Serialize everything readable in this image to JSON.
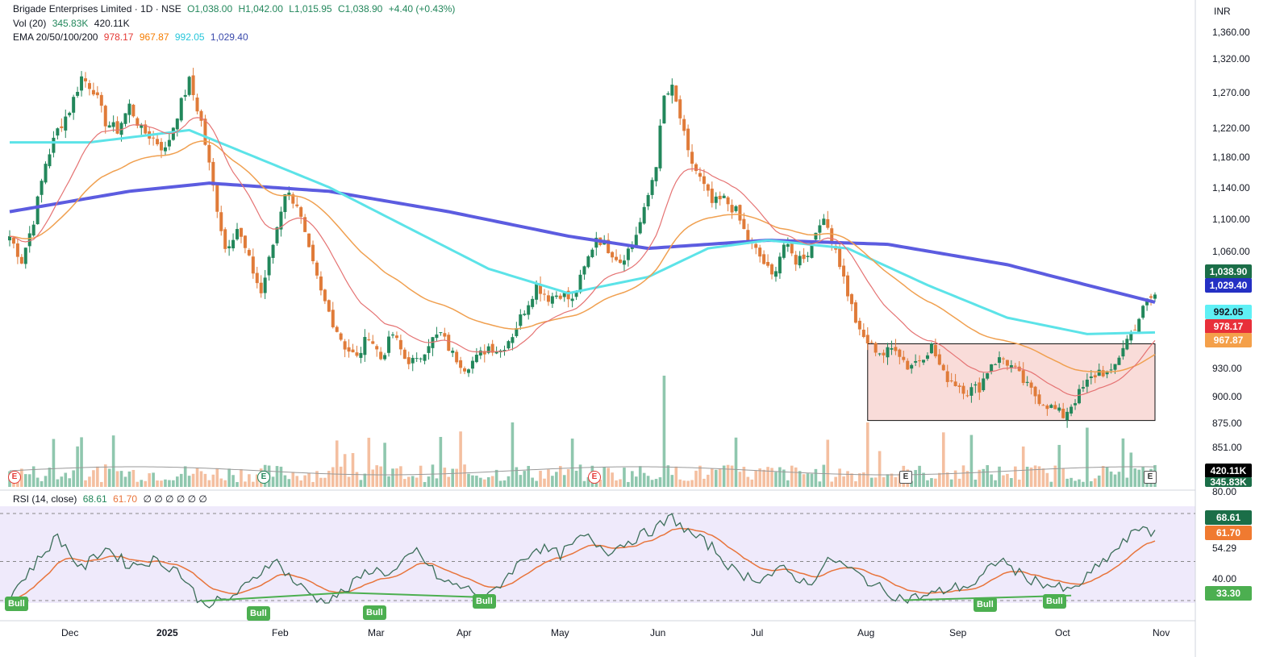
{
  "header": {
    "symbol": "Brigade Enterprises Limited · 1D · NSE",
    "ohlc_o": "O1,038.00",
    "ohlc_h": "H1,042.00",
    "ohlc_l": "L1,015.95",
    "ohlc_c": "C1,038.90",
    "change": "+4.40 (+0.43%)",
    "vol_label": "Vol (20)",
    "vol_a": "345.83K",
    "vol_b": "420.11K",
    "ema_label": "EMA 20/50/100/200",
    "ema20": "978.17",
    "ema50": "967.87",
    "ema100": "992.05",
    "ema200": "1,029.40",
    "rsi_label": "RSI (14, close)",
    "rsi_val": "68.61",
    "rsi_ma": "61.70",
    "rsi_rest": "∅ ∅ ∅ ∅ ∅ ∅",
    "currency": "INR"
  },
  "colors": {
    "up": "#22875b",
    "down": "#e07b39",
    "ema20": "#e57373",
    "ema50": "#f0a050",
    "ema100": "#5ce3e8",
    "ema200": "#5c5ce0",
    "rsi": "#3c6e5a",
    "rsi_ma": "#e8743b",
    "box_fill": "#f8d6d2",
    "rsi_bg": "#efeafb"
  },
  "price_axis": [
    "1,360.00",
    "1,320.00",
    "1,270.00",
    "1,220.00",
    "1,180.00",
    "1,140.00",
    "1,100.00",
    "1,060.00",
    "930.00",
    "900.00",
    "875.00",
    "851.00"
  ],
  "rsi_axis": [
    "80.00",
    "54.29",
    "40.00"
  ],
  "price_tags": {
    "last": "1,038.90",
    "ema200": "1,029.40",
    "ema100": "992.05",
    "ema20": "978.17",
    "ema50": "967.87",
    "vol_b": "420.11K",
    "vol_a": "345.83K"
  },
  "rsi_tags": {
    "rsi": "68.61",
    "ma": "61.70",
    "low": "33.30"
  },
  "x_axis": [
    "Dec",
    "2025",
    "Feb",
    "Mar",
    "Apr",
    "May",
    "Jun",
    "Jul",
    "Aug",
    "Sep",
    "Oct",
    "Nov"
  ],
  "signals": [
    "Bull",
    "Bull",
    "Bull",
    "Bull",
    "Bull",
    "Bull"
  ],
  "events": [
    "E",
    "E",
    "E",
    "E",
    "E"
  ],
  "chart_data": {
    "type": "candlestick",
    "title": "Brigade Enterprises Limited · 1D · NSE",
    "ylim": [
      840,
      1375
    ],
    "rsi_levels": [
      33.3,
      54.29,
      80
    ],
    "x_ticks": [
      "Dec",
      "2025",
      "Feb",
      "Mar",
      "Apr",
      "May",
      "Jun",
      "Jul",
      "Aug",
      "Sep",
      "Oct",
      "Nov"
    ],
    "price_anchors": [
      [
        0,
        1110
      ],
      [
        3,
        1080
      ],
      [
        6,
        1130
      ],
      [
        9,
        1200
      ],
      [
        12,
        1240
      ],
      [
        15,
        1265
      ],
      [
        18,
        1305
      ],
      [
        21,
        1290
      ],
      [
        24,
        1250
      ],
      [
        27,
        1240
      ],
      [
        30,
        1270
      ],
      [
        33,
        1240
      ],
      [
        36,
        1230
      ],
      [
        39,
        1215
      ],
      [
        42,
        1260
      ],
      [
        45,
        1300
      ],
      [
        48,
        1250
      ],
      [
        51,
        1170
      ],
      [
        54,
        1095
      ],
      [
        57,
        1120
      ],
      [
        60,
        1080
      ],
      [
        63,
        1040
      ],
      [
        66,
        1100
      ],
      [
        69,
        1165
      ],
      [
        72,
        1150
      ],
      [
        75,
        1090
      ],
      [
        78,
        1040
      ],
      [
        81,
        1005
      ],
      [
        84,
        975
      ],
      [
        87,
        960
      ],
      [
        90,
        990
      ],
      [
        93,
        960
      ],
      [
        96,
        990
      ],
      [
        99,
        960
      ],
      [
        102,
        955
      ],
      [
        105,
        980
      ],
      [
        108,
        990
      ],
      [
        111,
        965
      ],
      [
        114,
        950
      ],
      [
        117,
        960
      ],
      [
        120,
        975
      ],
      [
        123,
        970
      ],
      [
        126,
        990
      ],
      [
        129,
        1020
      ],
      [
        132,
        1050
      ],
      [
        135,
        1035
      ],
      [
        138,
        1040
      ],
      [
        141,
        1030
      ],
      [
        144,
        1070
      ],
      [
        147,
        1110
      ],
      [
        150,
        1095
      ],
      [
        153,
        1080
      ],
      [
        156,
        1100
      ],
      [
        159,
        1140
      ],
      [
        162,
        1200
      ],
      [
        164,
        1280
      ],
      [
        166,
        1290
      ],
      [
        168,
        1255
      ],
      [
        170,
        1210
      ],
      [
        173,
        1180
      ],
      [
        176,
        1150
      ],
      [
        179,
        1155
      ],
      [
        182,
        1140
      ],
      [
        185,
        1105
      ],
      [
        188,
        1085
      ],
      [
        191,
        1060
      ],
      [
        194,
        1100
      ],
      [
        197,
        1080
      ],
      [
        200,
        1090
      ],
      [
        203,
        1130
      ],
      [
        205,
        1120
      ],
      [
        207,
        1095
      ],
      [
        210,
        1040
      ],
      [
        213,
        990
      ],
      [
        216,
        975
      ],
      [
        219,
        965
      ],
      [
        222,
        975
      ],
      [
        225,
        950
      ],
      [
        228,
        960
      ],
      [
        231,
        975
      ],
      [
        234,
        940
      ],
      [
        237,
        930
      ],
      [
        240,
        920
      ],
      [
        243,
        925
      ],
      [
        246,
        955
      ],
      [
        249,
        960
      ],
      [
        252,
        945
      ],
      [
        255,
        925
      ],
      [
        258,
        910
      ],
      [
        261,
        900
      ],
      [
        264,
        890
      ],
      [
        267,
        910
      ],
      [
        270,
        930
      ],
      [
        273,
        945
      ],
      [
        276,
        940
      ],
      [
        279,
        975
      ],
      [
        282,
        1000
      ],
      [
        285,
        1030
      ],
      [
        287,
        1038
      ]
    ],
    "ema200_anchors": [
      [
        0,
        1140
      ],
      [
        30,
        1165
      ],
      [
        50,
        1175
      ],
      [
        80,
        1165
      ],
      [
        110,
        1140
      ],
      [
        140,
        1110
      ],
      [
        160,
        1095
      ],
      [
        190,
        1105
      ],
      [
        220,
        1100
      ],
      [
        250,
        1075
      ],
      [
        270,
        1050
      ],
      [
        287,
        1029
      ]
    ],
    "ema100_anchors": [
      [
        0,
        1225
      ],
      [
        20,
        1225
      ],
      [
        45,
        1240
      ],
      [
        60,
        1210
      ],
      [
        80,
        1170
      ],
      [
        100,
        1120
      ],
      [
        120,
        1070
      ],
      [
        140,
        1040
      ],
      [
        160,
        1060
      ],
      [
        175,
        1095
      ],
      [
        190,
        1105
      ],
      [
        210,
        1095
      ],
      [
        230,
        1050
      ],
      [
        250,
        1010
      ],
      [
        270,
        990
      ],
      [
        287,
        992
      ]
    ],
    "rsi_anchors": [
      [
        0,
        36
      ],
      [
        6,
        52
      ],
      [
        12,
        68
      ],
      [
        18,
        50
      ],
      [
        24,
        62
      ],
      [
        30,
        52
      ],
      [
        36,
        55
      ],
      [
        42,
        50
      ],
      [
        48,
        32
      ],
      [
        54,
        33
      ],
      [
        60,
        42
      ],
      [
        66,
        56
      ],
      [
        72,
        42
      ],
      [
        78,
        33
      ],
      [
        84,
        38
      ],
      [
        90,
        50
      ],
      [
        96,
        48
      ],
      [
        102,
        60
      ],
      [
        108,
        44
      ],
      [
        114,
        40
      ],
      [
        120,
        35
      ],
      [
        126,
        50
      ],
      [
        132,
        62
      ],
      [
        138,
        58
      ],
      [
        144,
        68
      ],
      [
        150,
        60
      ],
      [
        156,
        66
      ],
      [
        162,
        72
      ],
      [
        166,
        78
      ],
      [
        170,
        70
      ],
      [
        176,
        62
      ],
      [
        182,
        48
      ],
      [
        188,
        45
      ],
      [
        194,
        50
      ],
      [
        200,
        42
      ],
      [
        206,
        56
      ],
      [
        212,
        48
      ],
      [
        218,
        40
      ],
      [
        224,
        34
      ],
      [
        230,
        36
      ],
      [
        236,
        40
      ],
      [
        242,
        42
      ],
      [
        248,
        56
      ],
      [
        254,
        46
      ],
      [
        260,
        42
      ],
      [
        266,
        38
      ],
      [
        272,
        50
      ],
      [
        278,
        62
      ],
      [
        284,
        74
      ],
      [
        287,
        68.61
      ]
    ],
    "box": {
      "x0": 215,
      "x1": 287,
      "y_top": 978,
      "y_bottom": 884
    }
  }
}
